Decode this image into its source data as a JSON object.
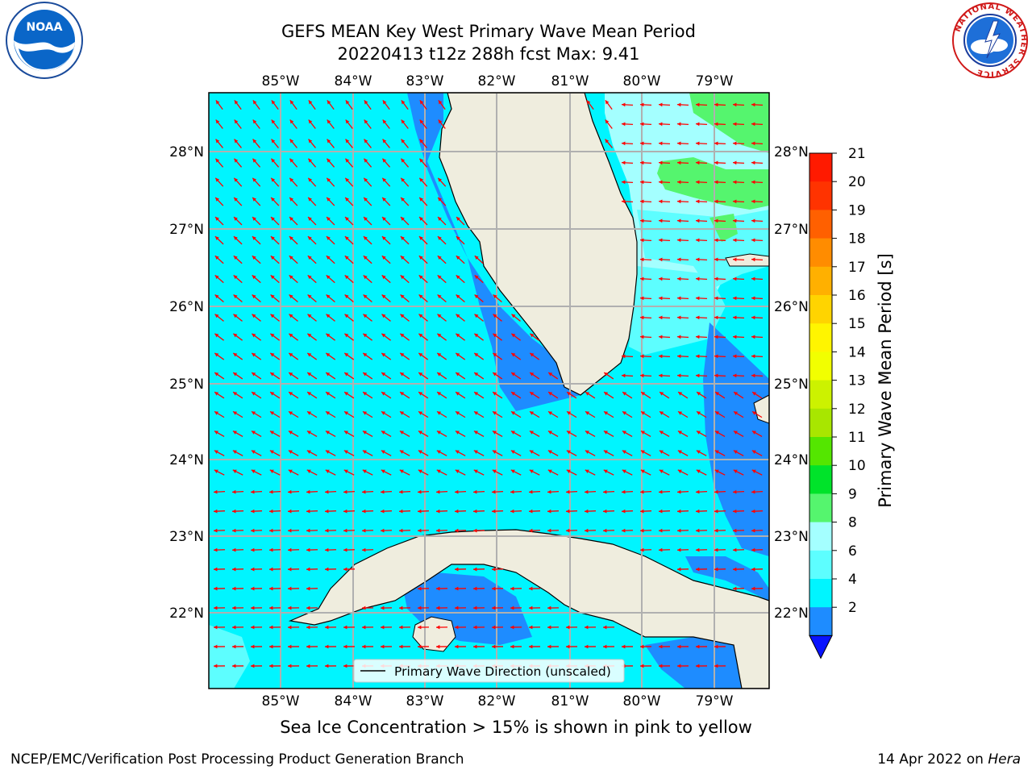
{
  "title": {
    "line1": "GEFS MEAN Key West Primary Wave Mean Period",
    "line2": "20220413 t12z 288h fcst   Max: 9.41"
  },
  "map": {
    "lon_labels": [
      "85°W",
      "84°W",
      "83°W",
      "82°W",
      "81°W",
      "80°W",
      "79°W"
    ],
    "lat_labels": [
      "28°N",
      "27°N",
      "26°N",
      "25°N",
      "24°N",
      "23°N",
      "22°N"
    ],
    "legend_label": "Primary Wave Direction (unscaled)",
    "colors": {
      "water_low": "#1e8cff",
      "water_mid": "#00f5ff",
      "water_high": "#5dfeff",
      "water_upper": "#a4ffff",
      "water_green": "#55f56e",
      "land": "#efedde",
      "arrow": "#ff0000",
      "grid": "#b0b0b0"
    }
  },
  "colorbar": {
    "label": "Primary Wave Mean Period [s]",
    "ticks": [
      "21",
      "20",
      "19",
      "18",
      "17",
      "16",
      "15",
      "14",
      "13",
      "12",
      "11",
      "10",
      "9",
      "8",
      "6",
      "4",
      "2"
    ],
    "colors": [
      "#ff1a00",
      "#ff3300",
      "#ff6000",
      "#ff8c00",
      "#ffb000",
      "#ffd400",
      "#fff500",
      "#f2ff00",
      "#ccf200",
      "#a8e600",
      "#54e600",
      "#00e32a",
      "#55f56e",
      "#a4ffff",
      "#5dfeff",
      "#00f5ff",
      "#1e8cff"
    ],
    "extend_color": "#0a14ff"
  },
  "footer": {
    "note": "Sea Ice Concentration > 15% is shown in pink to yellow",
    "left": "NCEP/EMC/Verification Post Processing Product Generation Branch",
    "right_date": "14 Apr 2022 on ",
    "right_host": "Hera"
  },
  "logos": {
    "noaa": "NOAA",
    "nws_ring": "NATIONAL WEATHER SERVICE"
  }
}
